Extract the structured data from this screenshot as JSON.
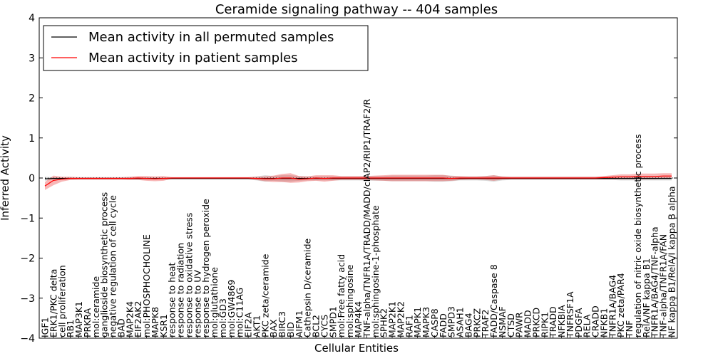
{
  "chart_data": {
    "type": "line",
    "title": "Ceramide signaling pathway -- 404 samples",
    "xlabel": "Cellular Entities",
    "ylabel": "Inferred Activity",
    "ylim": [
      -4,
      4
    ],
    "yticks": [
      -4,
      -3,
      -2,
      -1,
      0,
      1,
      2,
      3,
      4
    ],
    "legend_position": "top-left",
    "categories": [
      "IGF1",
      "ERK1/PKC delta",
      "cell proliferation",
      "RB1",
      "MAP3K1",
      "PRKRA",
      "mol:ceramide",
      "ganglioside biosynthetic process",
      "negative regulation of cell cycle",
      "BAD",
      "MAP2K4",
      "EIF2AK2",
      "mol:PHOSPHOCHOLINE",
      "MAPK8",
      "KSR1",
      "response to heat",
      "response to radiation",
      "response to oxidative stress",
      "response to UV",
      "response to hydrogen peroxide",
      "mol:glutathione",
      "mol:GD3",
      "mol:GW4869",
      "mol:C11AG",
      "EIF2A",
      "AKT1",
      "PKC zeta/ceramide",
      "BAX",
      "BIRC3",
      "BID",
      "AIFM1",
      "Cathepsin D/ceramide",
      "BCL2",
      "CYCS",
      "SMPD1",
      "mol:Free fatty acid",
      "mol:sphingosine",
      "MAP4K4",
      "TNF-alpha/TNFR1A/TRADD/MADD/cIAP2/RIP1/TRAF2/R",
      "mol:sphingosine-1-phosphate",
      "SPHK2",
      "MAP2K1",
      "MAP2K2",
      "RAF1",
      "MAPK1",
      "MAPK3",
      "CASP8",
      "FADD",
      "SMPD3",
      "ASAH1",
      "BAG4",
      "PRKCZ",
      "TRAF2",
      "FADD/Caspase 8",
      "NSMAF",
      "CTSD",
      "PAWR",
      "MADD",
      "PRKCD",
      "RIPK1",
      "TRADD",
      "NFKBIA",
      "TNFRSF1A",
      "PDGFA",
      "RELA",
      "CRADD",
      "NFKB1",
      "TNFR1A/BAG4",
      "PKC zeta/PAR4",
      "TNF",
      "regulation of nitric oxide biosynthetic process",
      "RelA/NF kappa B1",
      "TNFR1A/BAG4/TNF-alpha",
      "TNF-alpha/TNFR1A/FAN",
      "NF kappa B1/RelA/I kappa B alpha"
    ],
    "series": [
      {
        "name": "Mean activity in all permuted samples",
        "color": "#000000",
        "values": [
          -0.02,
          -0.01,
          -0.01,
          -0.01,
          -0.01,
          -0.01,
          -0.01,
          -0.01,
          -0.01,
          -0.01,
          -0.01,
          -0.01,
          -0.01,
          -0.01,
          -0.01,
          -0.01,
          -0.01,
          -0.01,
          -0.01,
          -0.01,
          -0.01,
          -0.01,
          -0.01,
          -0.01,
          -0.01,
          -0.01,
          -0.01,
          -0.01,
          -0.01,
          -0.01,
          -0.01,
          -0.01,
          -0.01,
          -0.01,
          -0.01,
          -0.01,
          -0.01,
          -0.01,
          -0.01,
          -0.01,
          -0.01,
          -0.01,
          -0.01,
          -0.01,
          -0.01,
          -0.01,
          -0.01,
          -0.01,
          -0.01,
          -0.01,
          -0.01,
          -0.01,
          -0.01,
          -0.01,
          -0.01,
          -0.01,
          -0.01,
          -0.01,
          -0.01,
          -0.01,
          -0.01,
          -0.01,
          -0.01,
          -0.01,
          -0.01,
          -0.01,
          -0.01,
          -0.01,
          -0.01,
          -0.01,
          -0.01,
          -0.01,
          -0.01,
          -0.01,
          -0.01
        ],
        "band": [
          0.05,
          0.03,
          0.03,
          0.03,
          0.03,
          0.03,
          0.03,
          0.03,
          0.03,
          0.03,
          0.03,
          0.03,
          0.03,
          0.03,
          0.03,
          0.03,
          0.03,
          0.03,
          0.03,
          0.03,
          0.03,
          0.03,
          0.03,
          0.03,
          0.03,
          0.05,
          0.08,
          0.06,
          0.08,
          0.08,
          0.06,
          0.05,
          0.05,
          0.05,
          0.05,
          0.05,
          0.05,
          0.05,
          0.06,
          0.06,
          0.06,
          0.07,
          0.07,
          0.07,
          0.07,
          0.07,
          0.08,
          0.08,
          0.07,
          0.05,
          0.05,
          0.05,
          0.06,
          0.08,
          0.05,
          0.04,
          0.04,
          0.04,
          0.04,
          0.04,
          0.04,
          0.04,
          0.04,
          0.04,
          0.04,
          0.04,
          0.04,
          0.04,
          0.05,
          0.05,
          0.05,
          0.05,
          0.05,
          0.05,
          0.05
        ]
      },
      {
        "name": "Mean activity in patient samples",
        "color": "#ff0000",
        "values": [
          -0.2,
          -0.06,
          -0.03,
          -0.01,
          -0.01,
          -0.01,
          -0.01,
          -0.01,
          -0.01,
          -0.01,
          -0.01,
          0.0,
          -0.01,
          -0.02,
          -0.01,
          0.0,
          0.0,
          0.0,
          0.0,
          0.0,
          0.0,
          0.0,
          0.0,
          0.0,
          0.0,
          -0.01,
          -0.02,
          -0.02,
          0.0,
          0.0,
          -0.03,
          -0.02,
          0.0,
          -0.01,
          0.0,
          0.0,
          0.0,
          0.0,
          0.0,
          0.0,
          0.0,
          0.0,
          0.0,
          0.0,
          0.0,
          0.0,
          0.0,
          0.0,
          -0.01,
          0.0,
          0.0,
          0.0,
          0.0,
          0.0,
          0.0,
          0.0,
          0.0,
          0.0,
          0.0,
          0.0,
          0.0,
          0.0,
          0.0,
          0.0,
          0.0,
          0.0,
          0.01,
          0.02,
          0.03,
          0.03,
          0.04,
          0.04,
          0.04,
          0.05,
          0.05
        ],
        "band": [
          0.1,
          0.12,
          0.06,
          0.04,
          0.03,
          0.03,
          0.03,
          0.03,
          0.03,
          0.03,
          0.04,
          0.05,
          0.06,
          0.06,
          0.06,
          0.02,
          0.02,
          0.02,
          0.02,
          0.02,
          0.02,
          0.02,
          0.02,
          0.02,
          0.02,
          0.04,
          0.06,
          0.08,
          0.1,
          0.12,
          0.08,
          0.06,
          0.07,
          0.08,
          0.07,
          0.05,
          0.05,
          0.05,
          0.05,
          0.06,
          0.07,
          0.08,
          0.08,
          0.08,
          0.08,
          0.08,
          0.08,
          0.08,
          0.06,
          0.05,
          0.04,
          0.04,
          0.05,
          0.07,
          0.04,
          0.03,
          0.03,
          0.03,
          0.03,
          0.03,
          0.03,
          0.03,
          0.03,
          0.03,
          0.03,
          0.03,
          0.04,
          0.05,
          0.06,
          0.06,
          0.07,
          0.07,
          0.07,
          0.07,
          0.07
        ]
      }
    ]
  }
}
